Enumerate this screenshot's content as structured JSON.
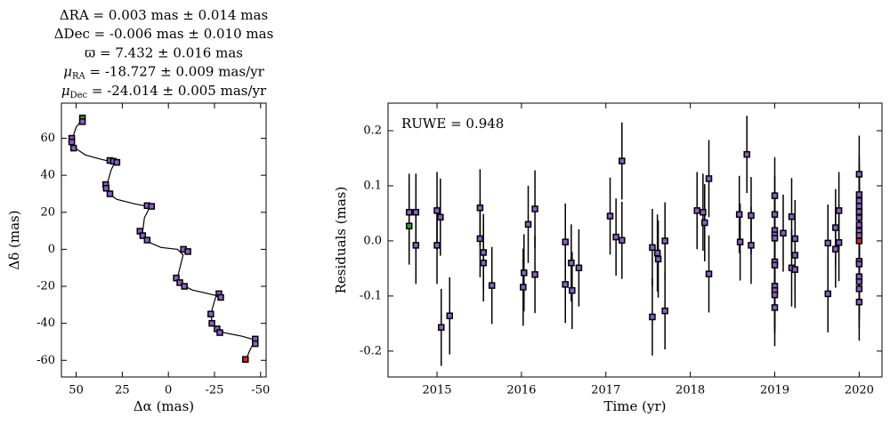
{
  "chart_data": [
    {
      "type": "scatter",
      "title_lines": [
        "ΔRA = 0.003 mas ± 0.014 mas",
        "ΔDec = -0.006 mas ± 0.010 mas",
        "ϖ = 7.432 ± 0.016 mas",
        {
          "symbol": "μ",
          "sub": "RA",
          "rest": " = -18.727 ± 0.009 mas/yr"
        },
        {
          "symbol": "μ",
          "sub": "Dec",
          "rest": " = -24.014 ± 0.005 mas/yr"
        }
      ],
      "xlabel": "Δα (mas)",
      "ylabel": "Δδ (mas)",
      "xlim": [
        58,
        -53
      ],
      "ylim": [
        -69,
        79
      ],
      "xticks": [
        50,
        25,
        0,
        -25,
        -50
      ],
      "yticks": [
        -60,
        -40,
        -20,
        0,
        20,
        40,
        60
      ],
      "marker_color": "#8b5fc4",
      "first_color": "#2ca02c",
      "last_color": "#d62728",
      "line_color": "#000000",
      "line": {
        "x": [
          46,
          50,
          52,
          51,
          45,
          36,
          29,
          31,
          33,
          32,
          28,
          18,
          10,
          13,
          14,
          11,
          4,
          -5,
          -8,
          -5,
          -7,
          -13,
          -26,
          -25,
          -23,
          -24,
          -30,
          -40,
          -47,
          -44,
          -42
        ],
        "y": [
          71,
          66,
          60,
          55,
          51,
          48.5,
          47,
          43,
          36,
          30,
          27,
          24.5,
          23,
          17,
          9,
          4,
          1,
          0,
          -3,
          -15,
          -19,
          -22,
          -25,
          -28,
          -35,
          -41,
          -45,
          -47,
          -49,
          -55,
          -60
        ]
      },
      "x": [
        46.6,
        46.6,
        52.4,
        52.4,
        51.4,
        31.7,
        29.8,
        27.9,
        34,
        33.7,
        31.7,
        11.5,
        9.1,
        15.4,
        13.9,
        11.5,
        -8.2,
        -10.6,
        -4.3,
        -6.2,
        -8.7,
        -27.4,
        -28.4,
        -23,
        -23.6,
        -26.4,
        -27.9,
        -47.1,
        -47.1,
        -41.8
      ],
      "values": [
        71,
        69,
        60,
        58,
        54.7,
        48,
        47.6,
        47,
        35,
        33,
        30,
        23.6,
        23.2,
        9.8,
        7.4,
        5,
        0,
        -1.2,
        -15.5,
        -18,
        -20,
        -24,
        -26,
        -35,
        -40,
        -43,
        -45,
        -48.5,
        -51,
        -59.5
      ]
    },
    {
      "type": "errorbar",
      "annotation": "RUWE = 0.948",
      "xlabel": "Time (yr)",
      "ylabel": "Residuals (mas)",
      "xlim": [
        2014.42,
        2020.27
      ],
      "ylim": [
        -0.247,
        0.25
      ],
      "xticks": [
        2015,
        2016,
        2017,
        2018,
        2019,
        2020
      ],
      "yticks": [
        -0.2,
        -0.1,
        {
          "value": 0,
          "label": "0.0"
        },
        0.1,
        0.2
      ],
      "marker_color": "#8b5fc4",
      "first_color": "#2ca02c",
      "last_color": "#d62728",
      "line_color": "#000000",
      "x": [
        2014.67,
        2014.67,
        2014.75,
        2014.75,
        2015.0,
        2015.0,
        2015.04,
        2015.05,
        2015.15,
        2015.51,
        2015.51,
        2015.55,
        2015.55,
        2015.65,
        2016.02,
        2016.03,
        2016.08,
        2016.16,
        2016.16,
        2016.52,
        2016.52,
        2016.59,
        2016.6,
        2016.68,
        2017.05,
        2017.12,
        2017.19,
        2017.19,
        2017.55,
        2017.55,
        2017.61,
        2017.62,
        2017.7,
        2017.7,
        2018.08,
        2018.15,
        2018.17,
        2018.22,
        2018.22,
        2018.58,
        2018.59,
        2018.67,
        2018.72,
        2018.72,
        2019.0,
        2019.0,
        2019.0,
        2019.0,
        2019.0,
        2019.0,
        2019.0,
        2019.0,
        2019.0,
        2019.0,
        2019.0,
        2019.1,
        2019.2,
        2019.2,
        2019.24,
        2019.24,
        2019.24,
        2019.63,
        2019.63,
        2019.72,
        2019.72,
        2019.76,
        2019.76,
        2020.0,
        2020.0,
        2020.0,
        2020.0,
        2020.0,
        2020.0,
        2020.0,
        2020.0,
        2020.0,
        2020.0,
        2020.0,
        2020.0,
        2020.0,
        2020.0,
        2020.0,
        2020.0
      ],
      "values": [
        0.027,
        0.052,
        0.052,
        -0.008,
        0.055,
        -0.008,
        0.043,
        -0.157,
        -0.136,
        0.06,
        0.004,
        -0.021,
        -0.04,
        -0.081,
        -0.084,
        -0.058,
        0.03,
        0.058,
        -0.061,
        -0.002,
        -0.079,
        -0.04,
        -0.09,
        -0.049,
        0.045,
        0.007,
        0.145,
        0.001,
        -0.012,
        -0.138,
        -0.022,
        -0.033,
        0.0,
        -0.127,
        0.055,
        0.052,
        0.033,
        0.113,
        -0.06,
        0.048,
        -0.002,
        0.157,
        0.046,
        -0.008,
        0.082,
        0.048,
        0.019,
        0.011,
        0.005,
        -0.038,
        -0.044,
        -0.082,
        -0.09,
        -0.098,
        -0.121,
        0.014,
        0.044,
        -0.049,
        0.004,
        -0.026,
        -0.052,
        -0.004,
        -0.096,
        0.024,
        -0.015,
        0.055,
        -0.003,
        0.121,
        0.084,
        0.073,
        0.063,
        0.053,
        0.042,
        0.029,
        0.018,
        0.01,
        -0.037,
        -0.042,
        -0.065,
        -0.074,
        -0.087,
        -0.111,
        0.0
      ],
      "errors": [
        0.07,
        0.07,
        0.07,
        0.07,
        0.07,
        0.07,
        0.07,
        0.07,
        0.07,
        0.07,
        0.07,
        0.07,
        0.07,
        0.07,
        0.07,
        0.07,
        0.07,
        0.07,
        0.07,
        0.07,
        0.07,
        0.07,
        0.07,
        0.07,
        0.07,
        0.07,
        0.07,
        0.07,
        0.07,
        0.07,
        0.07,
        0.07,
        0.07,
        0.07,
        0.07,
        0.07,
        0.07,
        0.07,
        0.07,
        0.07,
        0.07,
        0.07,
        0.07,
        0.07,
        0.07,
        0.07,
        0.07,
        0.07,
        0.07,
        0.07,
        0.07,
        0.07,
        0.07,
        0.07,
        0.07,
        0.07,
        0.07,
        0.07,
        0.07,
        0.07,
        0.07,
        0.07,
        0.07,
        0.07,
        0.07,
        0.07,
        0.07,
        0.07,
        0.07,
        0.07,
        0.07,
        0.07,
        0.07,
        0.07,
        0.07,
        0.07,
        0.07,
        0.07,
        0.07,
        0.07,
        0.07,
        0.07,
        0.07
      ]
    }
  ]
}
